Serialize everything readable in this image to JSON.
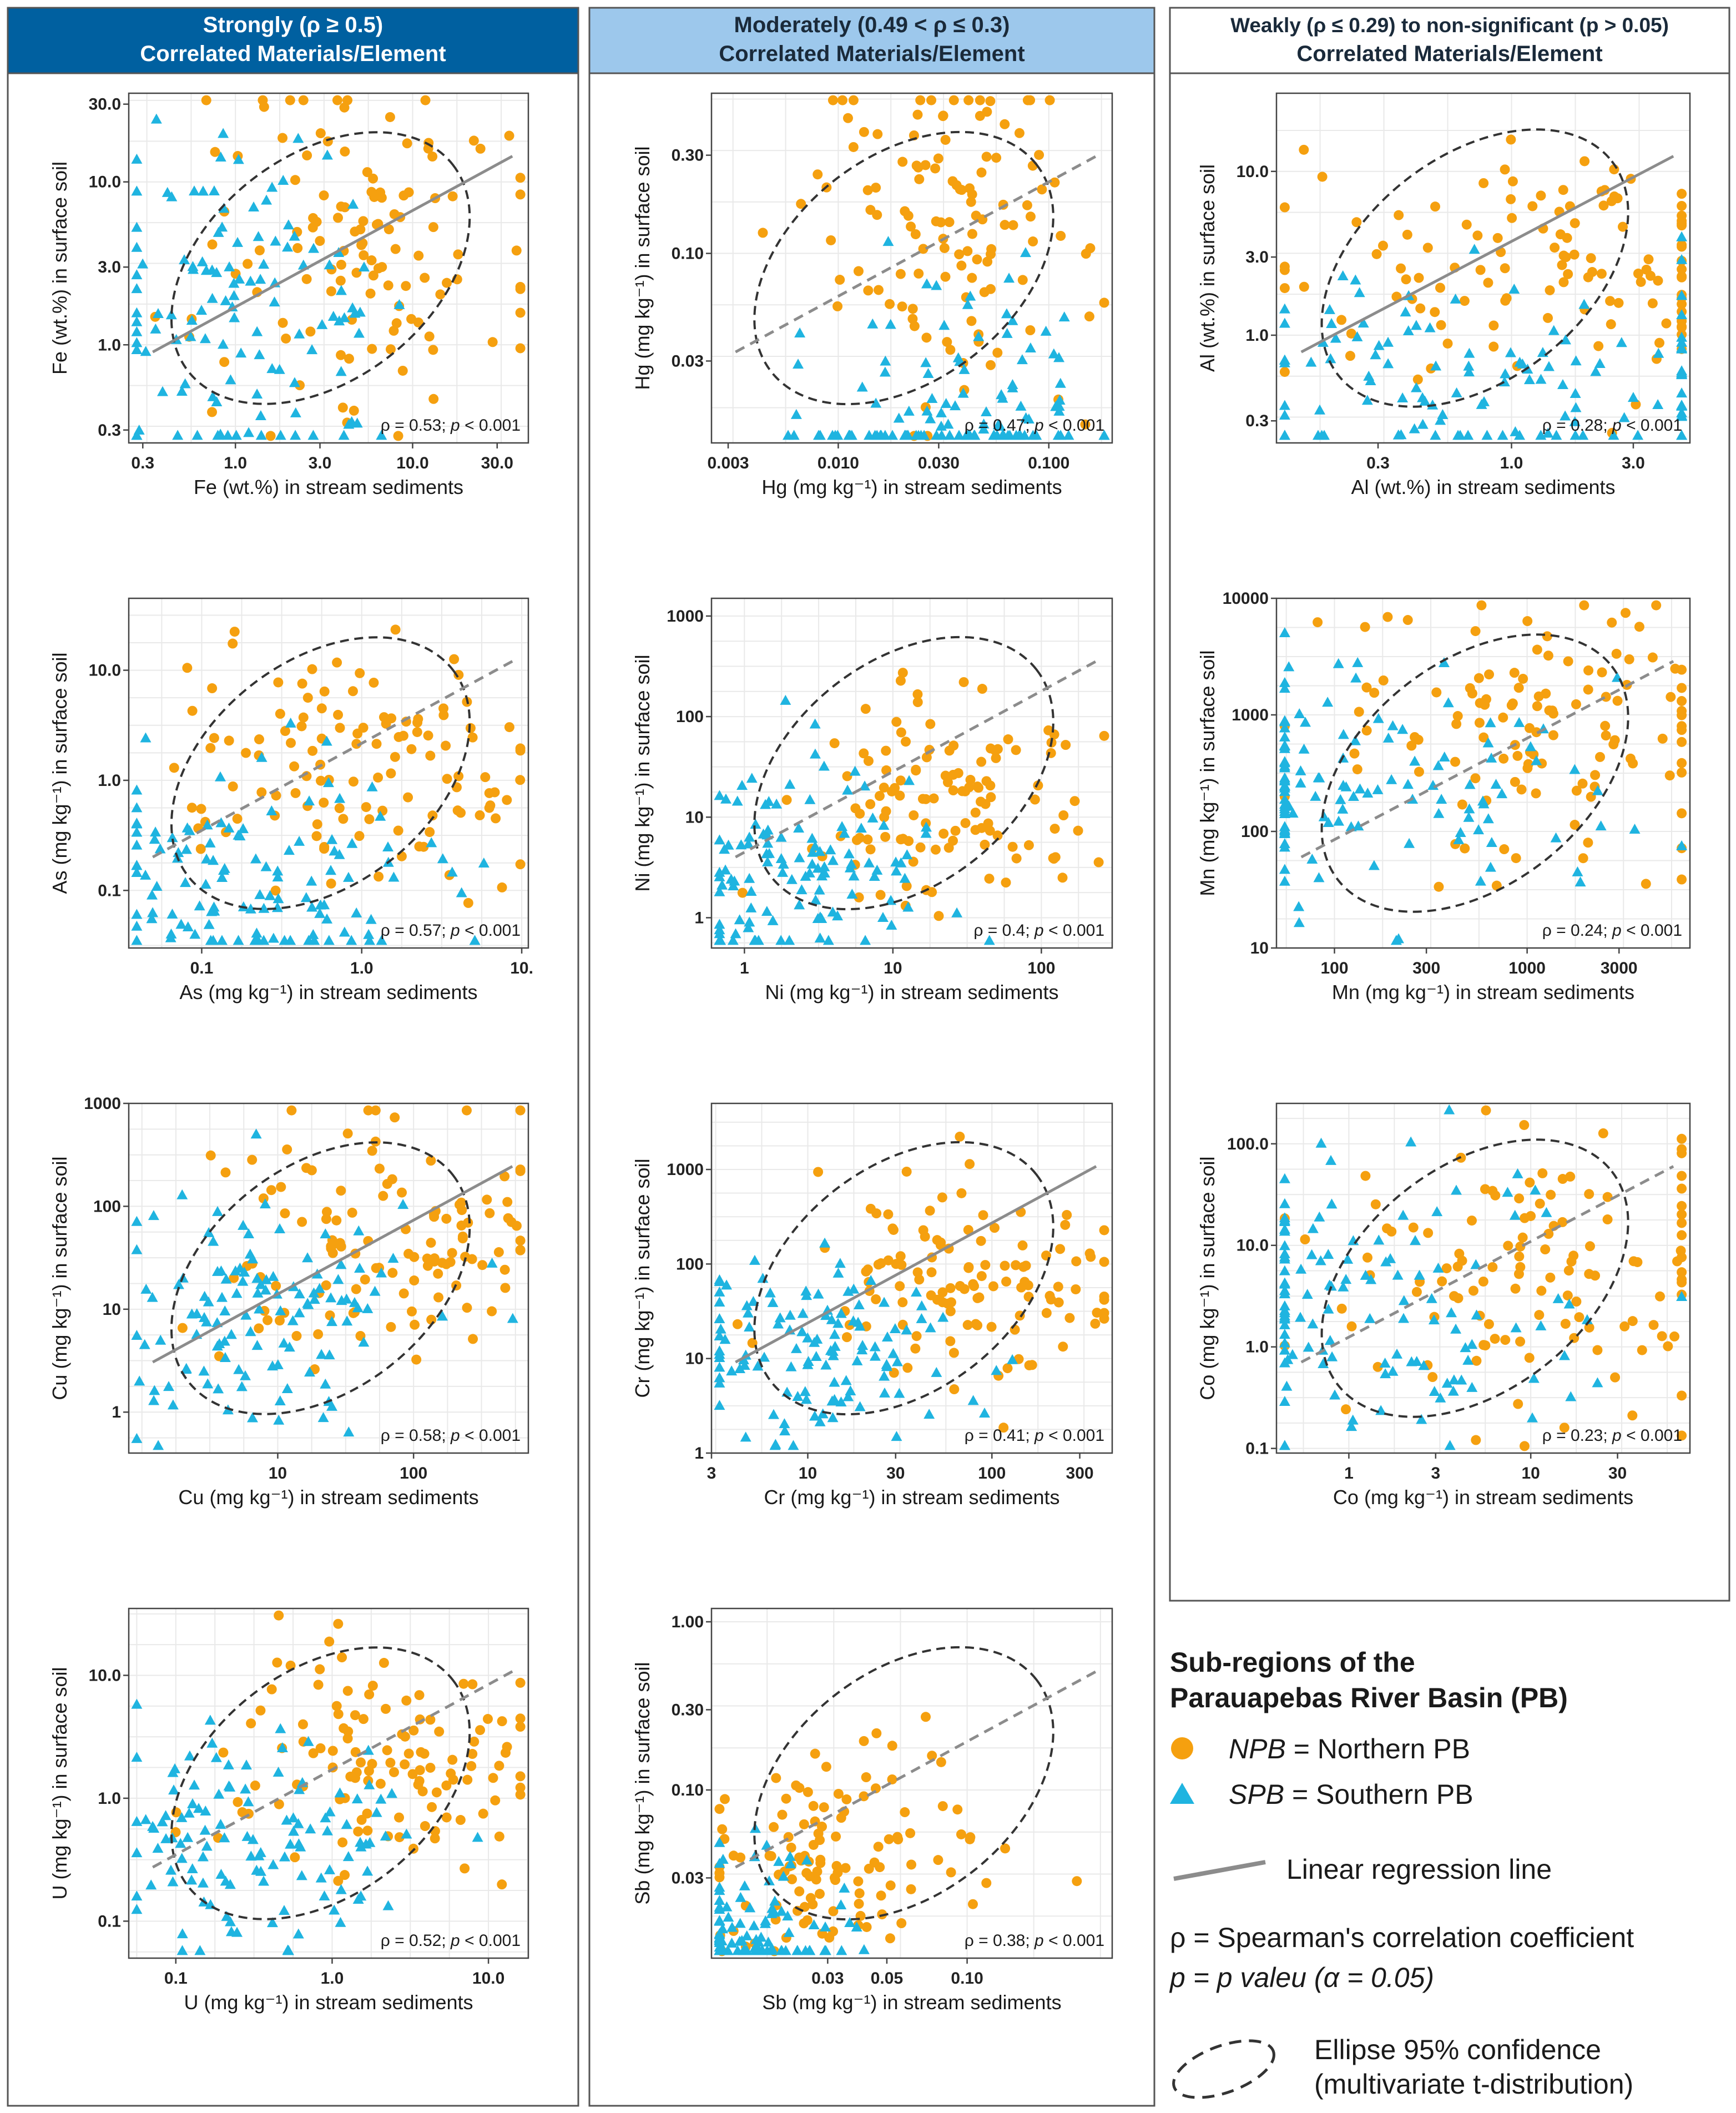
{
  "columns": [
    {
      "id": "strong",
      "line1": "Strongly (ρ ≥ 0.5)",
      "line2": "Correlated Materials/Element",
      "fill": "#0060a0",
      "textColor": "#ffffff"
    },
    {
      "id": "moderate",
      "line1": "Moderately (0.49 < ρ ≤ 0.3)",
      "line2": "Correlated Materials/Element",
      "fill": "#9dc8ec",
      "textColor": "#1a2a3a"
    },
    {
      "id": "weak",
      "line1": "Weakly (ρ ≤ 0.29) to non-significant (p > 0.05)",
      "line2": "Correlated Materials/Element",
      "fill": "#ffffff",
      "textColor": "#1a2a3a"
    }
  ],
  "colors": {
    "npb": "#f5a00f",
    "spb": "#1fb4e0",
    "regression": "#8c8c8c",
    "ellipse": "#333333",
    "grid": "#e9e9e9"
  },
  "legend": {
    "title_line1": "Sub-regions of the",
    "title_line2": "Parauapebas River Basin (PB)",
    "npb_abbr": "NPB",
    "npb_text": " = Northern PB",
    "spb_abbr": "SPB",
    "spb_text": " = Southern PB",
    "regression_text": "Linear regression line",
    "rho_text": "ρ = Spearman's correlation coefficient",
    "p_text": "p = p valeu (α = 0.05)",
    "ellipse_line1": "Ellipse 95% confidence",
    "ellipse_line2": "(multivariate t-distribution)"
  },
  "chart_data": [
    {
      "element": "Fe",
      "type": "scatter",
      "xlabel": "Fe (wt.%) in stream sediments",
      "ylabel": "Fe (wt.%) in surface soil",
      "xlim": [
        0.25,
        45
      ],
      "ylim": [
        0.25,
        35
      ],
      "xticks": [
        "0.3",
        "1.0",
        "3.0",
        "10.0",
        "30.0"
      ],
      "xtickvals": [
        0.3,
        1,
        3,
        10,
        30
      ],
      "yticks": [
        "0.3",
        "1.0",
        "3.0",
        "10.0",
        "30.0"
      ],
      "ytickvals": [
        0.3,
        1,
        3,
        10,
        30
      ],
      "rho": "0.53",
      "p": "0.001",
      "regression": "solid",
      "ellipse": {
        "c1": [
          2.5,
          3.2
        ],
        "c2": [
          0.45,
          0.6
        ],
        "d": 0.17
      }
    },
    {
      "element": "As",
      "type": "scatter",
      "xlabel": "As (mg kg⁻¹) in stream sediments",
      "ylabel": "As (mg kg⁻¹) in surface soil",
      "xlim": [
        0.035,
        11
      ],
      "ylim": [
        0.03,
        45
      ],
      "xticks": [
        "0.1",
        "1.0",
        "10."
      ],
      "xtickvals": [
        0.1,
        1,
        10
      ],
      "yticks": [
        "0.1",
        "1.0",
        "10.0"
      ],
      "ytickvals": [
        0.1,
        1,
        10
      ],
      "rho": "0.57",
      "p": "0.001",
      "regression": "dashed",
      "ellipse": {
        "c1": [
          0.33,
          0.55
        ],
        "c2": [
          0.6,
          0.55
        ],
        "d": 0.17
      }
    },
    {
      "element": "Cu",
      "type": "scatter",
      "xlabel": "Cu (mg kg⁻¹) in stream sediments",
      "ylabel": "Cu (mg kg⁻¹) in surface soil",
      "xlim": [
        0.8,
        700
      ],
      "ylim": [
        0.4,
        1000
      ],
      "xticks": [
        "10",
        "100"
      ],
      "xtickvals": [
        10,
        100
      ],
      "yticks": [
        "1",
        "10",
        "100",
        "1000"
      ],
      "ytickvals": [
        1,
        10,
        100,
        1000
      ],
      "rho": "0.58",
      "p": "0.001",
      "regression": "solid",
      "ellipse": {
        "c1": [
          22,
          25
        ],
        "c2": [
          0.6,
          0.6
        ],
        "d": 0.17
      }
    },
    {
      "element": "U",
      "type": "scatter",
      "xlabel": "U (mg kg⁻¹) in stream sediments",
      "ylabel": "U (mg kg⁻¹) in surface soil",
      "xlim": [
        0.05,
        18
      ],
      "ylim": [
        0.05,
        35
      ],
      "xticks": [
        "0.1",
        "1.0",
        "10.0"
      ],
      "xtickvals": [
        0.1,
        1,
        10
      ],
      "yticks": [
        "0.1",
        "1.0",
        "10.0"
      ],
      "ytickvals": [
        0.1,
        1,
        10
      ],
      "rho": "0.52",
      "p": "0.001",
      "regression": "dashed",
      "ellipse": {
        "c1": [
          0.9,
          1.0
        ],
        "c2": [
          0.5,
          0.5
        ],
        "d": 0.17
      }
    },
    {
      "element": "Hg",
      "type": "scatter",
      "xlabel": "Hg (mg kg⁻¹) in stream sediments",
      "ylabel": "Hg (mg kg⁻¹) in surface soil",
      "xlim": [
        0.0025,
        0.2
      ],
      "ylim": [
        0.012,
        0.6
      ],
      "xticks": [
        "0.003",
        "0.010",
        "0.030",
        "0.100"
      ],
      "xtickvals": [
        0.003,
        0.01,
        0.03,
        0.1
      ],
      "yticks": [
        "0.03",
        "0.10",
        "0.30"
      ],
      "ytickvals": [
        0.03,
        0.1,
        0.3
      ],
      "rho": "0.47",
      "p": "0.001",
      "regression": "dashed",
      "ellipse": {
        "c1": [
          0.02,
          0.09
        ],
        "c2": [
          0.35,
          0.4
        ],
        "d": 0.15
      }
    },
    {
      "element": "Ni",
      "type": "scatter",
      "xlabel": "Ni (mg kg⁻¹) in stream sediments",
      "ylabel": "Ni (mg kg⁻¹) in surface soil",
      "xlim": [
        0.6,
        300
      ],
      "ylim": [
        0.5,
        1500
      ],
      "xticks": [
        "1",
        "10",
        "100"
      ],
      "xtickvals": [
        1,
        10,
        100
      ],
      "yticks": [
        "1",
        "10",
        "100",
        "1000"
      ],
      "ytickvals": [
        1,
        10,
        100,
        1000
      ],
      "rho": "0.4",
      "p": "0.001",
      "regression": "dashed",
      "ellipse": {
        "c1": [
          8,
          8
        ],
        "c2": [
          0.5,
          0.5
        ],
        "d": 0.12
      }
    },
    {
      "element": "Cr",
      "type": "scatter",
      "xlabel": "Cr (mg kg⁻¹) in stream sediments",
      "ylabel": "Cr (mg kg⁻¹) in surface soil",
      "xlim": [
        3,
        450
      ],
      "ylim": [
        1,
        5000
      ],
      "xticks": [
        "3",
        "10",
        "30",
        "100",
        "300"
      ],
      "xtickvals": [
        3,
        10,
        30,
        100,
        300
      ],
      "yticks": [
        "1",
        "10",
        "100",
        "1000"
      ],
      "ytickvals": [
        1,
        10,
        100,
        1000
      ],
      "rho": "0.41",
      "p": "0.001",
      "regression": "solid",
      "ellipse": {
        "c1": [
          30,
          30
        ],
        "c2": [
          0.4,
          0.5
        ],
        "d": 0.12
      }
    },
    {
      "element": "Sb",
      "type": "scatter",
      "xlabel": "Sb (mg kg⁻¹) in stream sediments",
      "ylabel": "Sb (mg kg⁻¹) in surface soil",
      "xlim": [
        0.011,
        0.35
      ],
      "ylim": [
        0.01,
        1.2
      ],
      "xticks": [
        "0.03",
        "0.05",
        "0.10"
      ],
      "xtickvals": [
        0.03,
        0.05,
        0.1
      ],
      "yticks": [
        "0.03",
        "0.10",
        "0.30",
        "1.00"
      ],
      "ytickvals": [
        0.03,
        0.1,
        0.3,
        1.0
      ],
      "rho": "0.38",
      "p": "0.001",
      "regression": "dashed",
      "ellipse": {
        "c1": [
          0.02,
          0.025
        ],
        "c2": [
          0.25,
          0.25
        ],
        "d": 0.1
      }
    },
    {
      "element": "Al",
      "type": "scatter",
      "xlabel": "Al (wt.%) in stream sediments",
      "ylabel": "Al (wt.%) in surface soil",
      "xlim": [
        0.12,
        5
      ],
      "ylim": [
        0.22,
        30
      ],
      "xticks": [
        "0.3",
        "1.0",
        "3.0"
      ],
      "xtickvals": [
        0.3,
        1,
        3
      ],
      "yticks": [
        "0.3",
        "1.0",
        "3.0",
        "10.0"
      ],
      "ytickvals": [
        0.3,
        1,
        3,
        10
      ],
      "rho": "0.28",
      "p": "0.001",
      "regression": "solid",
      "ellipse": {
        "c1": [
          1.0,
          1.6
        ],
        "c2": [
          0.6,
          0.35
        ],
        "d": 0.1
      }
    },
    {
      "element": "Mn",
      "type": "scatter",
      "xlabel": "Mn (mg kg⁻¹) in stream sediments",
      "ylabel": "Mn (mg kg⁻¹) in surface soil",
      "xlim": [
        50,
        7000
      ],
      "ylim": [
        10,
        10000
      ],
      "xticks": [
        "100",
        "300",
        "1000",
        "3000"
      ],
      "xtickvals": [
        100,
        300,
        1000,
        3000
      ],
      "yticks": [
        "10",
        "100",
        "1000",
        "10000"
      ],
      "ytickvals": [
        10,
        100,
        1000,
        10000
      ],
      "rho": "0.24",
      "p": "0.001",
      "regression": "dashed",
      "ellipse": {
        "c1": [
          600,
          400
        ],
        "c2": [
          0.65,
          0.55
        ],
        "d": 0.1
      }
    },
    {
      "element": "Co",
      "type": "scatter",
      "xlabel": "Co (mg kg⁻¹) in stream sediments",
      "ylabel": "Co (mg kg⁻¹) in surface soil",
      "xlim": [
        0.4,
        75
      ],
      "ylim": [
        0.09,
        250
      ],
      "xticks": [
        "1",
        "3",
        "10",
        "30"
      ],
      "xtickvals": [
        1,
        3,
        10,
        30
      ],
      "yticks": [
        "0.1",
        "1.0",
        "10.0",
        "100.0"
      ],
      "ytickvals": [
        0.1,
        1,
        10,
        100
      ],
      "rho": "0.23",
      "p": "0.001",
      "regression": "dashed",
      "ellipse": {
        "c1": [
          6,
          3
        ],
        "c2": [
          0.7,
          0.7
        ],
        "d": 0.1
      }
    }
  ]
}
